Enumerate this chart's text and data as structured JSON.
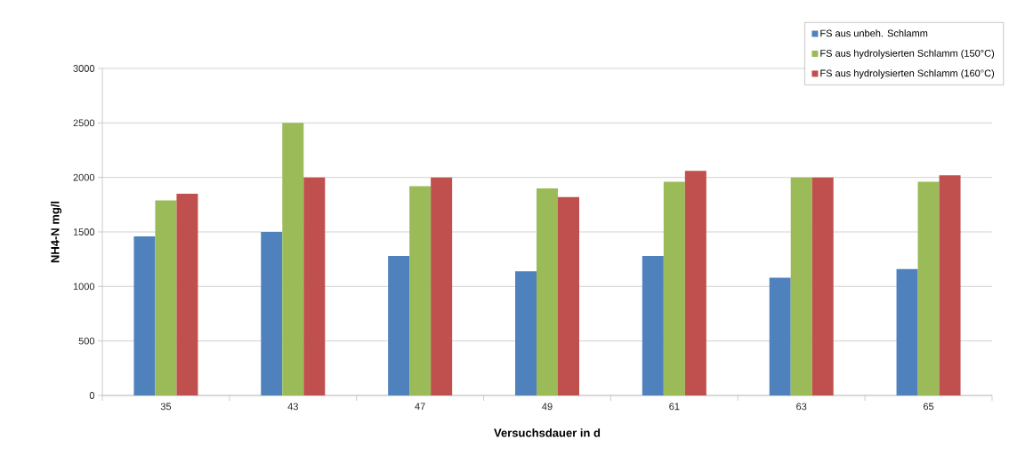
{
  "chart_data": {
    "type": "bar",
    "xlabel": "Versuchsdauer in d",
    "ylabel": "NH4-N mg/l",
    "categories": [
      "35",
      "43",
      "47",
      "49",
      "61",
      "63",
      "65"
    ],
    "series": [
      {
        "name": "FS aus unbeh. Schlamm",
        "color": "#4f81bd",
        "values": [
          1460,
          1500,
          1280,
          1140,
          1280,
          1080,
          1160
        ]
      },
      {
        "name": "FS aus hydrolysierten Schlamm (150°C)",
        "color": "#9bbb59",
        "values": [
          1790,
          2500,
          1920,
          1900,
          1960,
          2000,
          1960
        ]
      },
      {
        "name": "FS aus hydrolysierten Schlamm (160°C)",
        "color": "#c0504d",
        "values": [
          1850,
          2000,
          2000,
          1820,
          2060,
          2000,
          2020
        ]
      }
    ],
    "ylim": [
      0,
      3000
    ],
    "yticks": [
      0,
      500,
      1000,
      1500,
      2000,
      2500,
      3000
    ],
    "grid": "y",
    "legend": "top right"
  }
}
